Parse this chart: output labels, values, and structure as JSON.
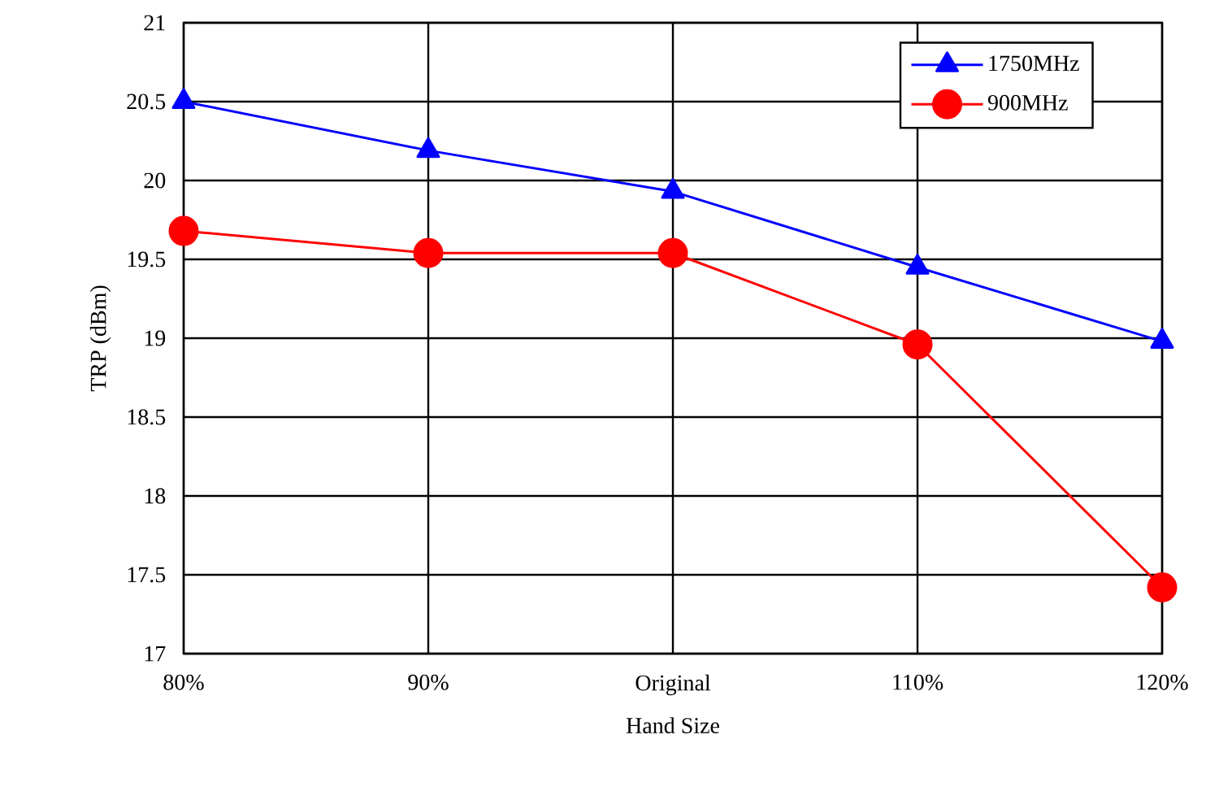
{
  "chart_data": {
    "type": "line",
    "xlabel": "Hand Size",
    "ylabel": "TRP (dBm)",
    "categories": [
      "80%",
      "90%",
      "Original",
      "110%",
      "120%"
    ],
    "series": [
      {
        "name": "1750MHz",
        "color": "#0000ff",
        "marker": "triangle",
        "values": [
          20.5,
          20.19,
          19.93,
          19.45,
          18.98
        ]
      },
      {
        "name": "900MHz",
        "color": "#ff0000",
        "marker": "circle",
        "values": [
          19.68,
          19.54,
          19.54,
          18.96,
          17.42
        ]
      }
    ],
    "ylim": [
      17,
      21
    ],
    "yticks": [
      17,
      17.5,
      18,
      18.5,
      19,
      19.5,
      20,
      20.5,
      21
    ],
    "grid": true,
    "legend": "top right",
    "line_style": "solid"
  }
}
